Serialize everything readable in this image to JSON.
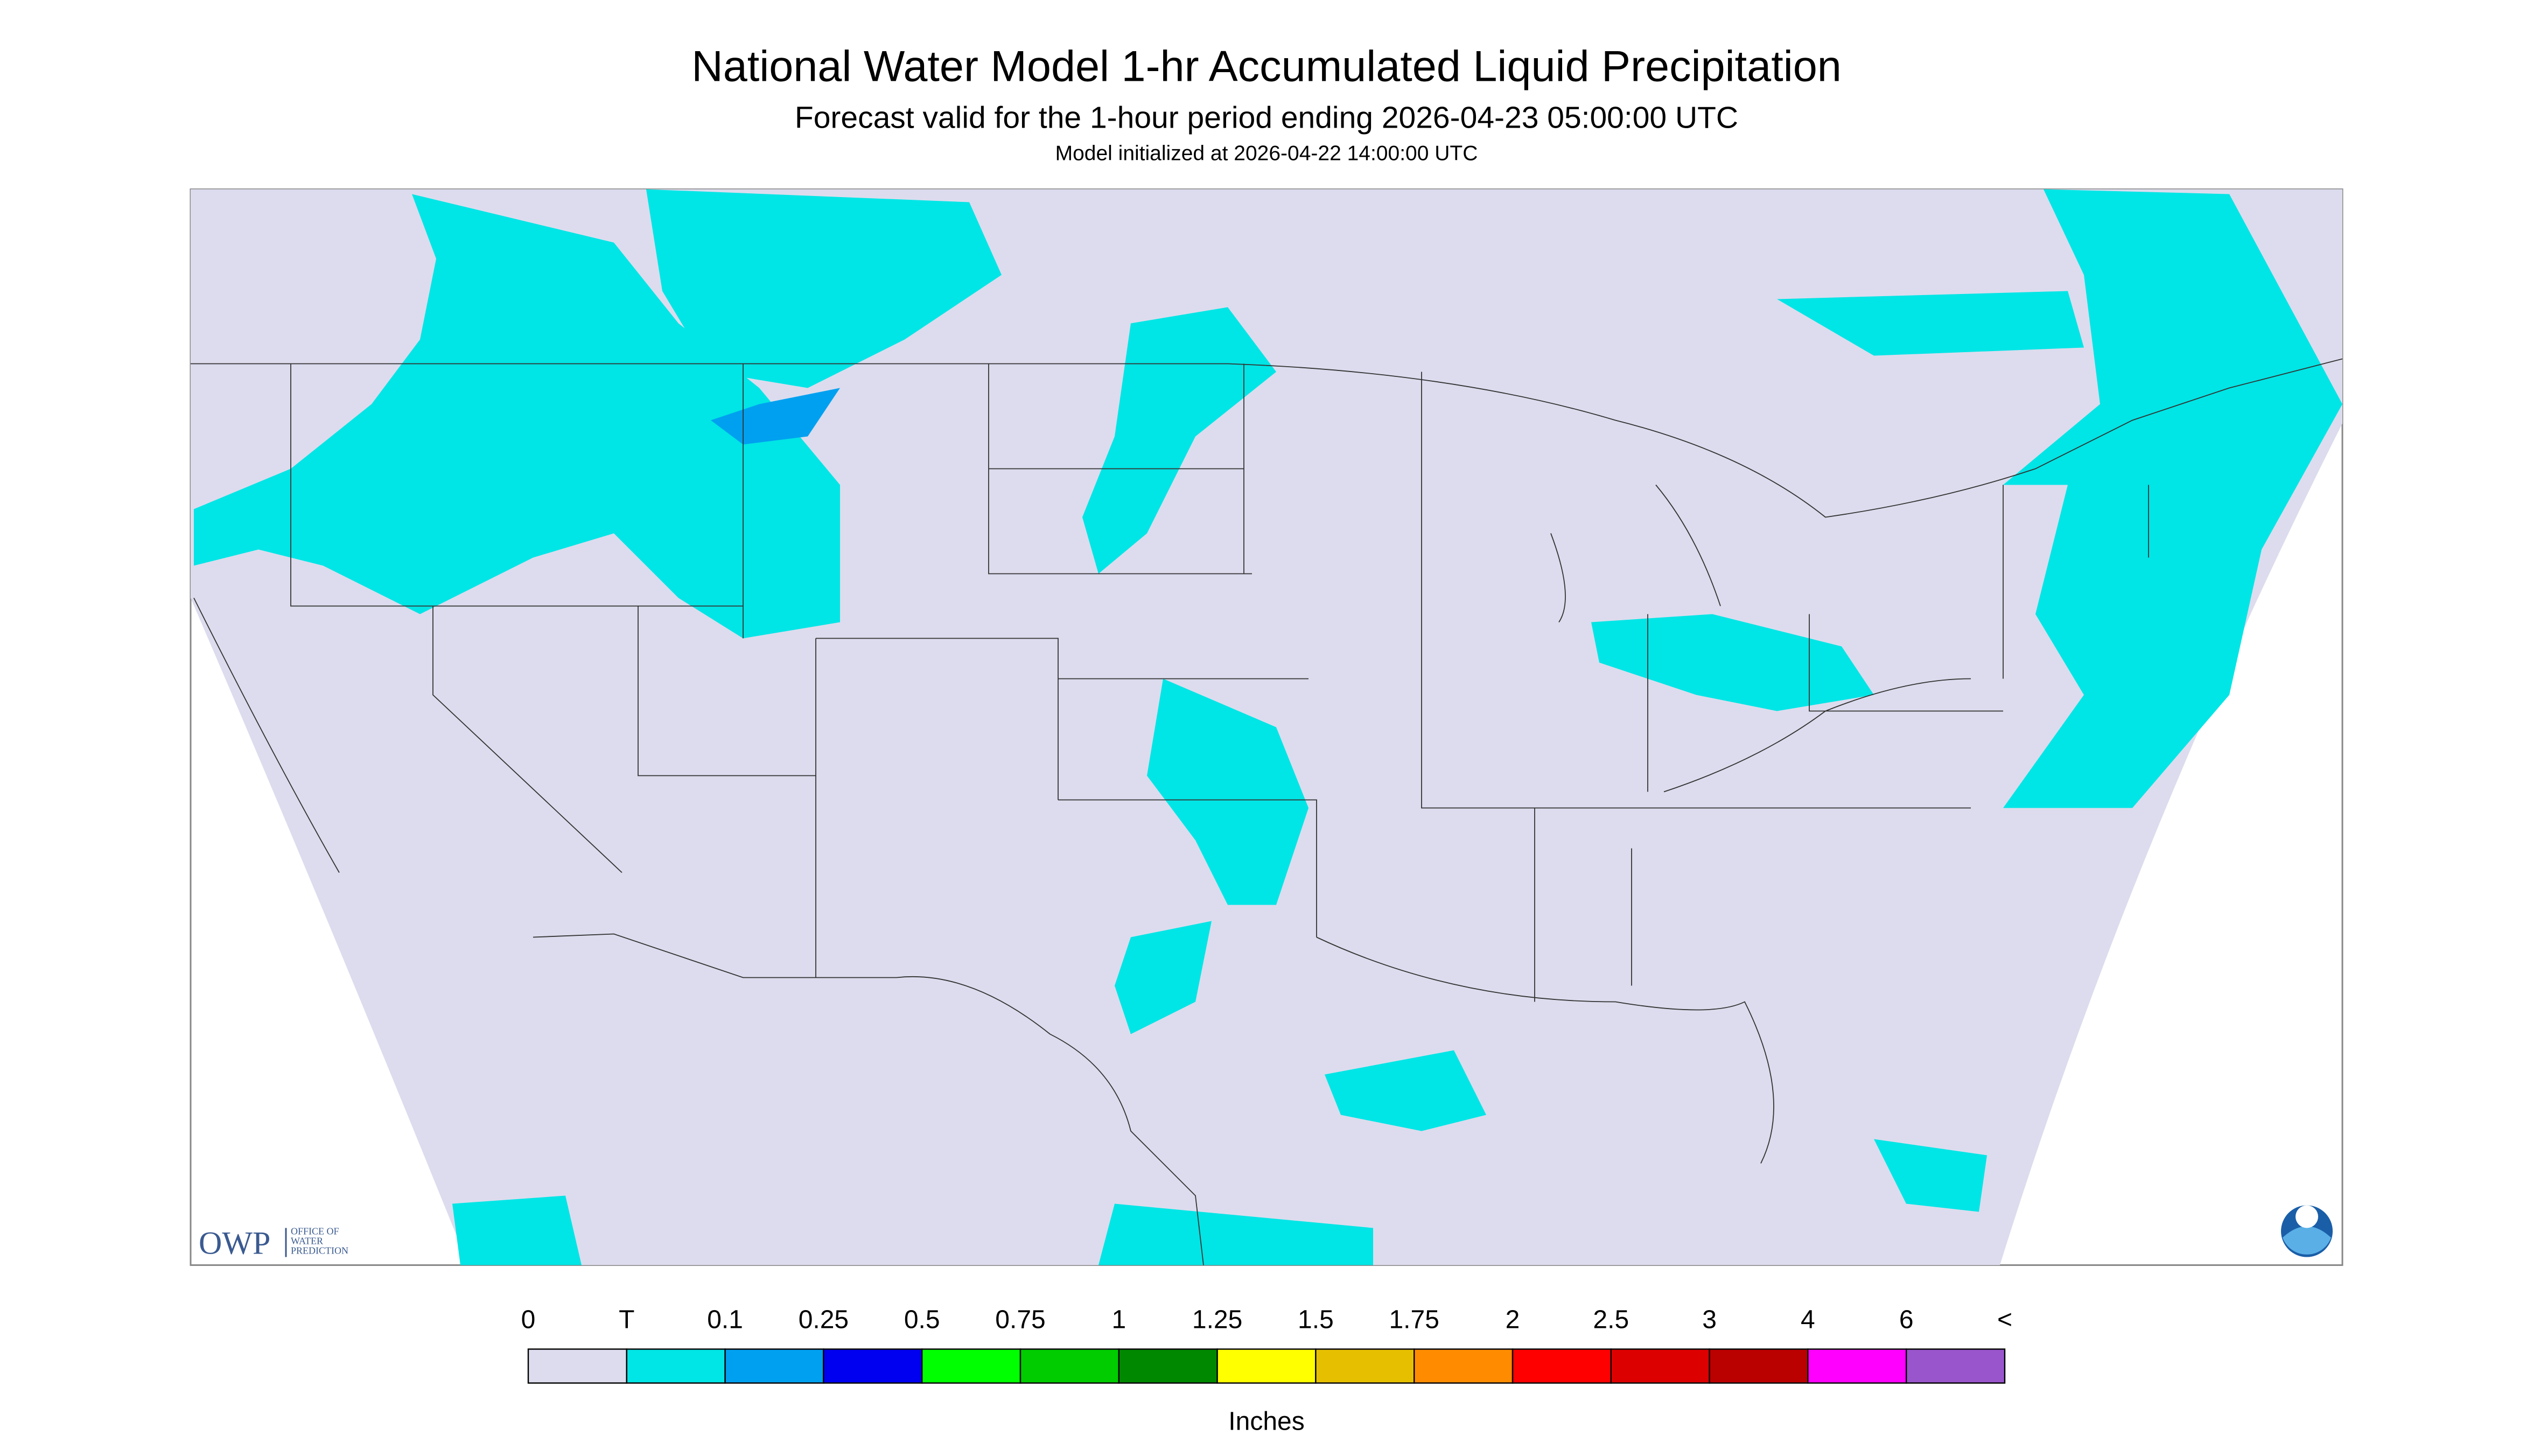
{
  "header": {
    "title": "National Water Model 1-hr Accumulated Liquid Precipitation",
    "subtitle": "Forecast valid for the 1-hour period ending 2026-04-23 05:00:00 UTC",
    "initialized": "Model initialized at 2026-04-22 14:00:00 UTC"
  },
  "logo": {
    "name": "OWP",
    "text": [
      "OFFICE OF",
      "WATER",
      "PREDICTION"
    ]
  },
  "legend": {
    "labels": [
      "0",
      "T",
      "0.1",
      "0.25",
      "0.5",
      "0.75",
      "1",
      "1.25",
      "1.5",
      "1.75",
      "2",
      "2.5",
      "3",
      "4",
      "6",
      "<"
    ],
    "colors": [
      "#dcdcee",
      "#00e5e5",
      "#00a0f0",
      "#0000f0",
      "#00ff00",
      "#00cc00",
      "#008800",
      "#ffff00",
      "#e6c000",
      "#ff8c00",
      "#ff0000",
      "#dd0000",
      "#bb0000",
      "#ff00ff",
      "#9955cc"
    ],
    "unit": "Inches"
  }
}
